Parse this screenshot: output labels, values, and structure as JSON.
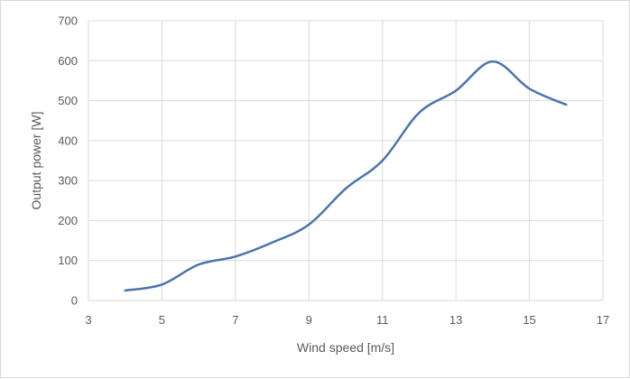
{
  "chart_data": {
    "type": "line",
    "xlabel": "Wind speed [m/s]",
    "ylabel": "Output power  [W]",
    "xlim": [
      3,
      17
    ],
    "ylim": [
      0,
      700
    ],
    "x_ticks": [
      3,
      5,
      7,
      9,
      11,
      13,
      15,
      17
    ],
    "y_ticks": [
      0,
      100,
      200,
      300,
      400,
      500,
      600,
      700
    ],
    "grid": true,
    "legend": "none",
    "series": [
      {
        "color": "#4a74ad",
        "x": [
          4,
          5,
          6,
          7,
          8,
          9,
          10,
          11,
          12,
          13,
          14,
          15,
          16
        ],
        "y": [
          25,
          40,
          90,
          110,
          145,
          190,
          280,
          350,
          470,
          525,
          598,
          530,
          490
        ]
      }
    ]
  }
}
